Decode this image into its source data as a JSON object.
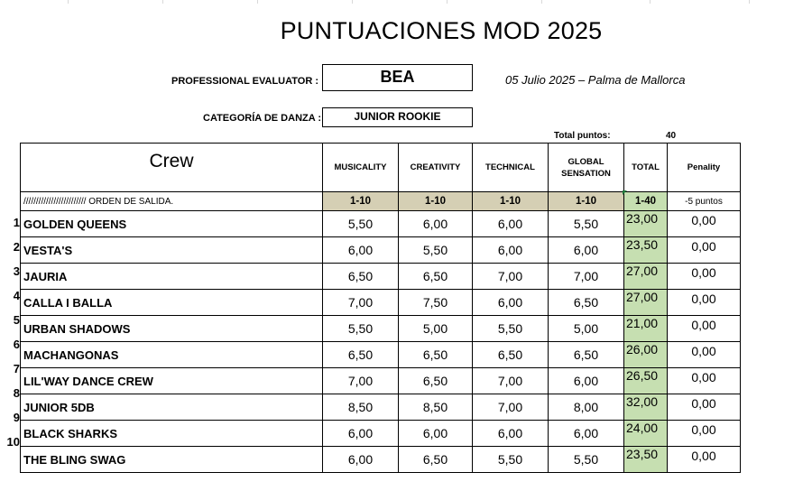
{
  "title": "PUNTUACIONES MOD 2025",
  "evaluator": {
    "label": "PROFESSIONAL EVALUATOR :",
    "value": "BEA"
  },
  "date_place": "05 Julio 2025 – Palma de Mallorca",
  "category": {
    "label": "CATEGORÍA DE DANZA :",
    "value": "JUNIOR ROOKIE"
  },
  "total_points": {
    "label": "Total puntos:",
    "value": "40"
  },
  "headers": {
    "crew": "Crew",
    "musicality": "MUSICALITY",
    "creativity": "CREATIVITY",
    "technical": "TECHNICAL",
    "global": "GLOBAL SENSATION",
    "total": "TOTAL",
    "penality": "Penality"
  },
  "ranges": {
    "order": "///////////////////////// ORDEN DE SALIDA.",
    "musicality": "1-10",
    "creativity": "1-10",
    "technical": "1-10",
    "global": "1-10",
    "total": "1-40",
    "penality": "-5 puntos"
  },
  "rows": [
    {
      "n": "1",
      "crew": "GOLDEN QUEENS",
      "mus": "5,50",
      "cre": "6,00",
      "tec": "6,00",
      "glo": "5,50",
      "total": "23,00",
      "pen": "0,00"
    },
    {
      "n": "2",
      "crew": "VESTA'S",
      "mus": "6,00",
      "cre": "5,50",
      "tec": "6,00",
      "glo": "6,00",
      "total": "23,50",
      "pen": "0,00"
    },
    {
      "n": "3",
      "crew": "JAURIA",
      "mus": "6,50",
      "cre": "6,50",
      "tec": "7,00",
      "glo": "7,00",
      "total": "27,00",
      "pen": "0,00"
    },
    {
      "n": "4",
      "crew": "CALLA I BALLA",
      "mus": "7,00",
      "cre": "7,50",
      "tec": "6,00",
      "glo": "6,50",
      "total": "27,00",
      "pen": "0,00"
    },
    {
      "n": "5",
      "crew": "URBAN SHADOWS",
      "mus": "5,50",
      "cre": "5,00",
      "tec": "5,50",
      "glo": "5,00",
      "total": "21,00",
      "pen": "0,00"
    },
    {
      "n": "6",
      "crew": "MACHANGONAS",
      "mus": "6,50",
      "cre": "6,50",
      "tec": "6,50",
      "glo": "6,50",
      "total": "26,00",
      "pen": "0,00"
    },
    {
      "n": "7",
      "crew": "LIL'WAY DANCE CREW",
      "mus": "7,00",
      "cre": "6,50",
      "tec": "7,00",
      "glo": "6,00",
      "total": "26,50",
      "pen": "0,00"
    },
    {
      "n": "8",
      "crew": "JUNIOR 5DB",
      "mus": "8,50",
      "cre": "8,50",
      "tec": "7,00",
      "glo": "8,00",
      "total": "32,00",
      "pen": "0,00"
    },
    {
      "n": "9",
      "crew": "BLACK SHARKS",
      "mus": "6,00",
      "cre": "6,00",
      "tec": "6,00",
      "glo": "6,00",
      "total": "24,00",
      "pen": "0,00"
    },
    {
      "n": "10",
      "crew": "THE BLING SWAG",
      "mus": "6,00",
      "cre": "6,50",
      "tec": "5,50",
      "glo": "5,50",
      "total": "23,50",
      "pen": "0,00"
    }
  ]
}
